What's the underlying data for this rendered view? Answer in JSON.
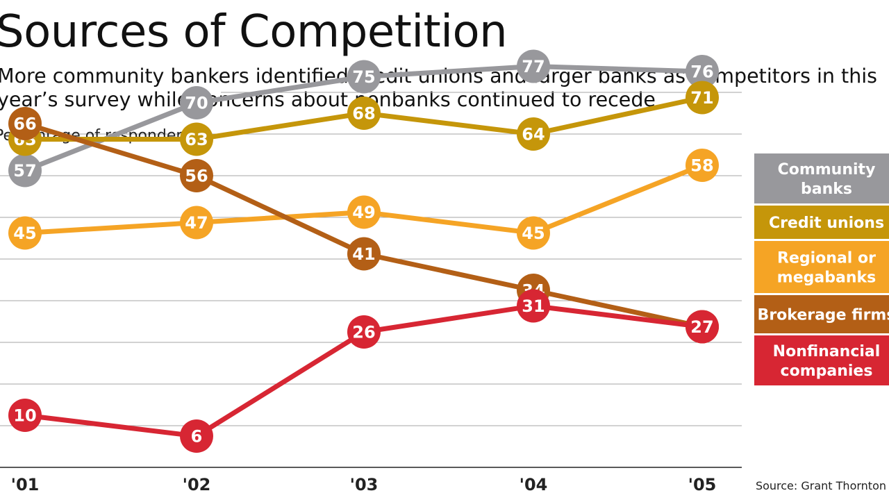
{
  "chart_data": {
    "type": "line",
    "title": "Sources of Competition",
    "subtitle": "More community bankers identified credit unions and larger banks as competitors in this year’s survey while concerns about nonbanks continued to recede",
    "ylabel": "Percentage of respondents",
    "xlabel": "",
    "categories": [
      "'01",
      "'02",
      "'03",
      "'04",
      "'05"
    ],
    "ylim": [
      0,
      80
    ],
    "grid": true,
    "legend_position": "right",
    "series": [
      {
        "name": "Community banks",
        "color": "#98989c",
        "values": [
          57,
          70,
          75,
          77,
          76
        ]
      },
      {
        "name": "Credit unions",
        "color": "#c5960a",
        "values": [
          63,
          63,
          68,
          64,
          71
        ]
      },
      {
        "name": "Regional or megabanks",
        "color": "#f5a425",
        "values": [
          45,
          47,
          49,
          45,
          58
        ]
      },
      {
        "name": "Brokerage firms",
        "color": "#b35f16",
        "values": [
          66,
          56,
          41,
          34,
          27
        ]
      },
      {
        "name": "Nonfinancial companies",
        "color": "#d72633",
        "values": [
          10,
          6,
          26,
          31,
          27
        ]
      }
    ],
    "source": "Source: Grant Thornton"
  }
}
